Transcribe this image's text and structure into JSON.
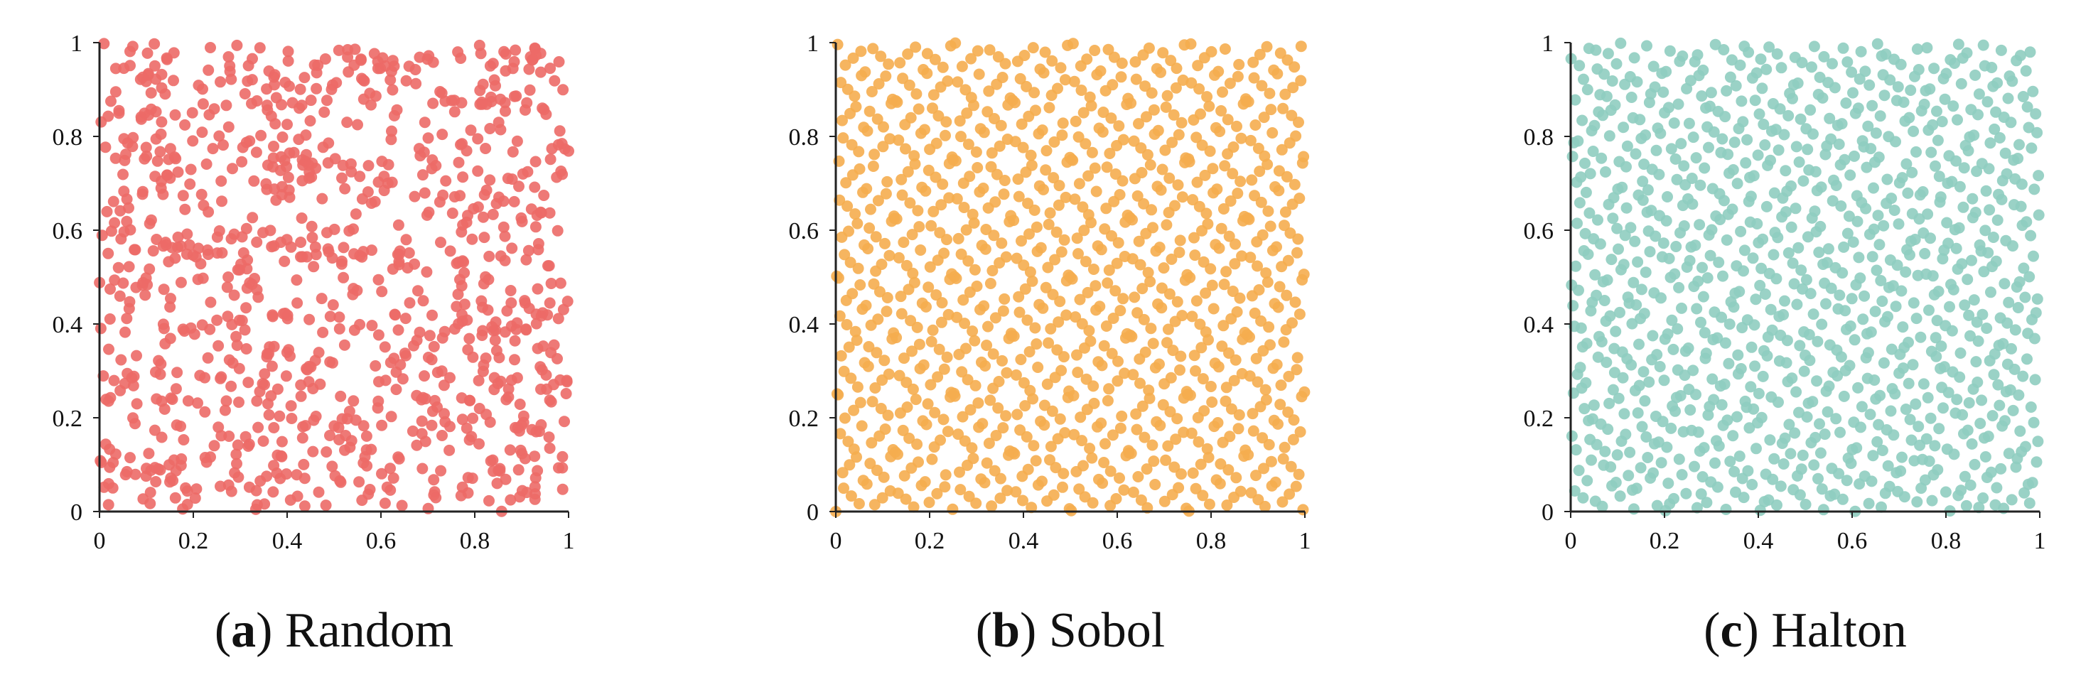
{
  "figure": {
    "panels": [
      {
        "letter": "a",
        "name": "Random",
        "color": "#ec6a67",
        "pattern": "random",
        "point_count": 1000
      },
      {
        "letter": "b",
        "name": "Sobol",
        "color": "#f5ad4f",
        "pattern": "sobol",
        "point_count": 1000
      },
      {
        "letter": "c",
        "name": "Halton",
        "color": "#8fcdc0",
        "pattern": "halton",
        "point_count": 1000
      }
    ]
  },
  "chart_data": [
    {
      "type": "scatter",
      "title": "",
      "xlabel": "",
      "ylabel": "",
      "xlim": [
        0,
        1
      ],
      "ylim": [
        0,
        1
      ],
      "x_ticks": [
        "0",
        "0.2",
        "0.4",
        "0.6",
        "0.8",
        "1"
      ],
      "y_ticks": [
        "0",
        "0.2",
        "0.4",
        "0.6",
        "0.8",
        "1"
      ],
      "grid": false,
      "series": [
        {
          "color": "#ec6a67",
          "distribution": "uniform random",
          "n": 1000
        }
      ]
    },
    {
      "type": "scatter",
      "title": "",
      "xlabel": "",
      "ylabel": "",
      "xlim": [
        0,
        1
      ],
      "ylim": [
        0,
        1
      ],
      "x_ticks": [
        "0",
        "0.2",
        "0.4",
        "0.6",
        "0.8",
        "1"
      ],
      "y_ticks": [
        "0",
        "0.2",
        "0.4",
        "0.6",
        "0.8",
        "1"
      ],
      "grid": false,
      "series": [
        {
          "color": "#f5ad4f",
          "distribution": "Sobol sequence",
          "n": 1000
        }
      ]
    },
    {
      "type": "scatter",
      "title": "",
      "xlabel": "",
      "ylabel": "",
      "xlim": [
        0,
        1
      ],
      "ylim": [
        0,
        1
      ],
      "x_ticks": [
        "0",
        "0.2",
        "0.4",
        "0.6",
        "0.8",
        "1"
      ],
      "y_ticks": [
        "0",
        "0.2",
        "0.4",
        "0.6",
        "0.8",
        "1"
      ],
      "grid": false,
      "series": [
        {
          "color": "#8fcdc0",
          "distribution": "Halton sequence",
          "n": 1000
        }
      ]
    }
  ]
}
